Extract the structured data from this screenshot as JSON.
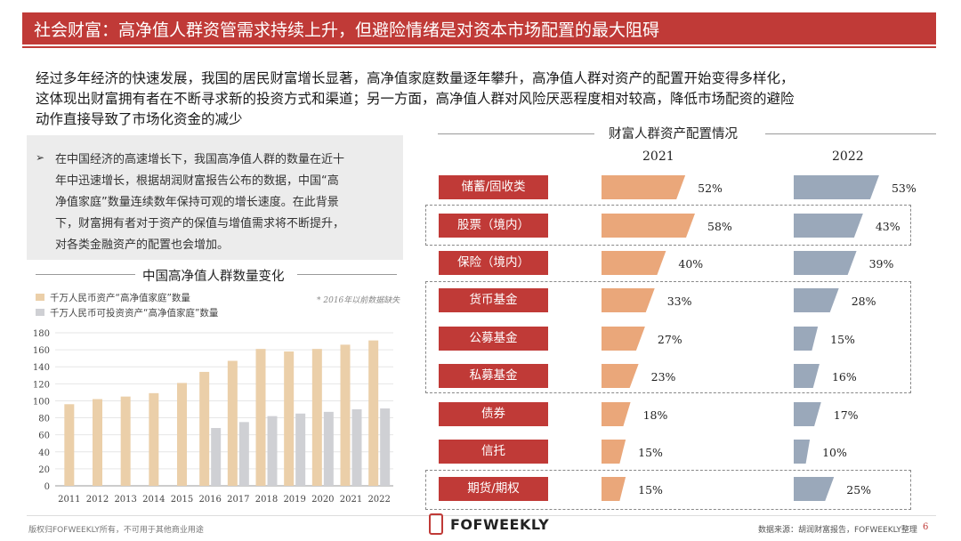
{
  "banner": {
    "title": "社会财富：高净值人群资管需求持续上升，但避险情绪是对资本市场配置的最大阻碍"
  },
  "intro": {
    "lines": [
      "经过多年经济的快速发展，我国的居民财富增长显著，高净值家庭数量逐年攀升，高净值人群对资产的配置开始变得多样化，",
      "这体现出财富拥有者在不断寻求新的投资方式和渠道；另一方面，高净值人群对风险厌恶程度相对较高，降低市场配资的避险",
      "动作直接导致了市场化资金的减少"
    ]
  },
  "bullet": {
    "arrow": "➢",
    "lines": [
      "在中国经济的高速增长下，我国高净值人群的数量在近十",
      "年中迅速增长，根据胡润财富报告公布的数据，中国“高",
      "净值家庭”数量连续数年保持可观的增长速度。在此背景",
      "下，财富拥有者对于资产的保值与增值需求将不断提升，",
      "对各类金融资产的配置也会增加。"
    ]
  },
  "colors": {
    "accent": "#c03a37",
    "series1": "#ebcfa9",
    "series2": "#cfd0d4",
    "funnel2021": "#eaa77a",
    "funnel2022": "#9aa8ba"
  },
  "chart_data": [
    {
      "type": "bar",
      "title": "中国高净值人群数量变化",
      "note": "* 2016年以前数据缺失",
      "categories": [
        "2011",
        "2012",
        "2013",
        "2014",
        "2015",
        "2016",
        "2017",
        "2018",
        "2019",
        "2020",
        "2021",
        "2022"
      ],
      "ylim": [
        0,
        180
      ],
      "yticks": [
        0,
        20,
        40,
        60,
        80,
        100,
        120,
        140,
        160,
        180
      ],
      "grid": true,
      "legend_position": "top-left",
      "series": [
        {
          "name": "千万人民币资产“高净值家庭”数量",
          "values": [
            96,
            102,
            105,
            109,
            121,
            134,
            147,
            161,
            158,
            161,
            166,
            171
          ]
        },
        {
          "name": "千万人民币可投资资产“高净值家庭”数量",
          "values": [
            null,
            null,
            null,
            null,
            null,
            68,
            75,
            82,
            85,
            87,
            90,
            91
          ]
        }
      ]
    },
    {
      "type": "bar",
      "title": "财富人群资产配置情况",
      "categories": [
        "储蓄/固收类",
        "股票（境内）",
        "保险（境内）",
        "货币基金",
        "公募基金",
        "私募基金",
        "债券",
        "信托",
        "期货/期权"
      ],
      "series": [
        {
          "name": "2021",
          "values": [
            52,
            58,
            40,
            33,
            27,
            23,
            18,
            15,
            15
          ],
          "labels": [
            "52%",
            "58%",
            "40%",
            "33%",
            "27%",
            "23%",
            "18%",
            "15%",
            "15%"
          ]
        },
        {
          "name": "2022",
          "values": [
            53,
            43,
            39,
            28,
            15,
            16,
            17,
            10,
            25
          ],
          "labels": [
            "53%",
            "43%",
            "39%",
            "28%",
            "15%",
            "16%",
            "17%",
            "10%",
            "25%"
          ]
        }
      ]
    }
  ],
  "footer": {
    "left": "版权归FOFWEEKLY所有，不可用于其他商业用途",
    "brand": "FOFWEEKLY",
    "source": "数据来源：胡润财富报告，FOFWEEKLY整理",
    "page": "6"
  }
}
